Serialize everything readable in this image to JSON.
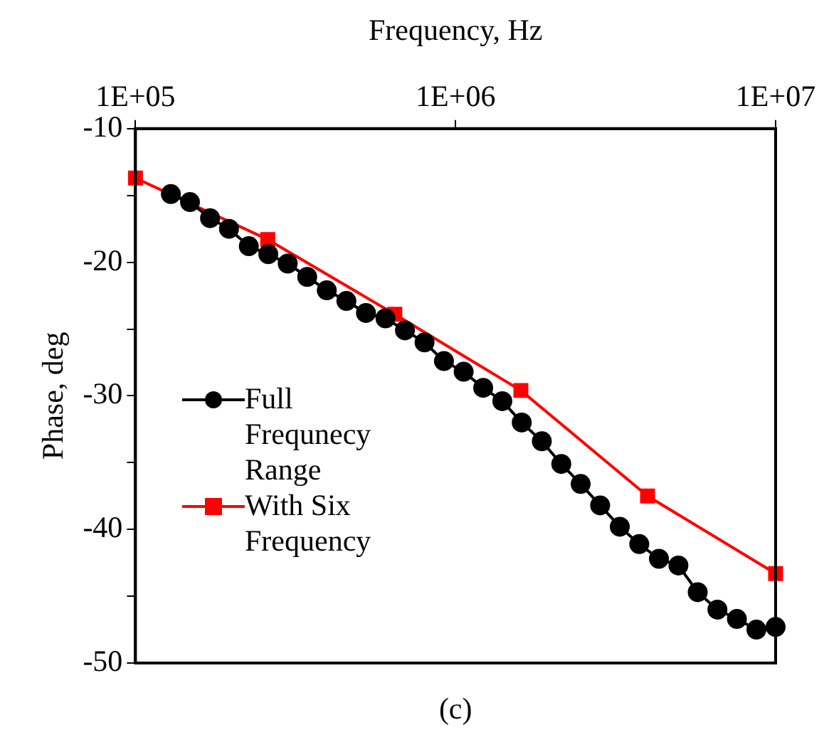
{
  "chart_data": {
    "type": "line",
    "xlabel": "Frequency, Hz",
    "ylabel": "Phase, deg",
    "annotations": [
      "(c)"
    ],
    "log": "x",
    "grid": false,
    "legend": "left",
    "line_style": "solid",
    "xlim": [
      100000,
      10000000
    ],
    "xticks": [
      {
        "value": 100000,
        "label": "1E+05"
      },
      {
        "value": 1000000,
        "label": "1E+06"
      },
      {
        "value": 10000000,
        "label": "1E+07"
      }
    ],
    "ylim": [
      -50,
      -10
    ],
    "yticks": [
      -10,
      {
        "value": -15,
        "label": null
      },
      -20,
      {
        "value": -25,
        "label": null
      },
      -30,
      {
        "value": -35,
        "label": null
      },
      -40,
      {
        "value": -45,
        "label": null
      },
      -50
    ],
    "series": [
      {
        "name": "Full Frequnecy Range",
        "color": "#000000",
        "marker": "circle",
        "x": [
          129000,
          148000,
          171000,
          196000,
          226000,
          260000,
          299000,
          344000,
          396000,
          456000,
          525000,
          604000,
          695000,
          800000,
          920000,
          1060000,
          1220000,
          1400000,
          1610000,
          1860000,
          2140000,
          2460000,
          2830000,
          3260000,
          3750000,
          4320000,
          4970000,
          5710000,
          6580000,
          7570000,
          8710000,
          10000000
        ],
        "values": [
          -14.9,
          -15.5,
          -16.7,
          -17.5,
          -18.8,
          -19.4,
          -20.1,
          -21.1,
          -22.1,
          -22.9,
          -23.8,
          -24.2,
          -25.1,
          -26.0,
          -27.4,
          -28.2,
          -29.4,
          -30.4,
          -32.0,
          -33.4,
          -35.1,
          -36.6,
          -38.2,
          -39.8,
          -41.1,
          -42.2,
          -42.7,
          -44.7,
          -46.0,
          -46.7,
          -47.5,
          -47.3
        ]
      },
      {
        "name": "With Six Frequency",
        "color": "#ff0000",
        "marker": "square",
        "x": [
          100000,
          259000,
          646000,
          1600000,
          3980000,
          10000000
        ],
        "values": [
          -13.7,
          -18.3,
          -23.9,
          -29.6,
          -37.5,
          -43.3
        ]
      }
    ]
  }
}
